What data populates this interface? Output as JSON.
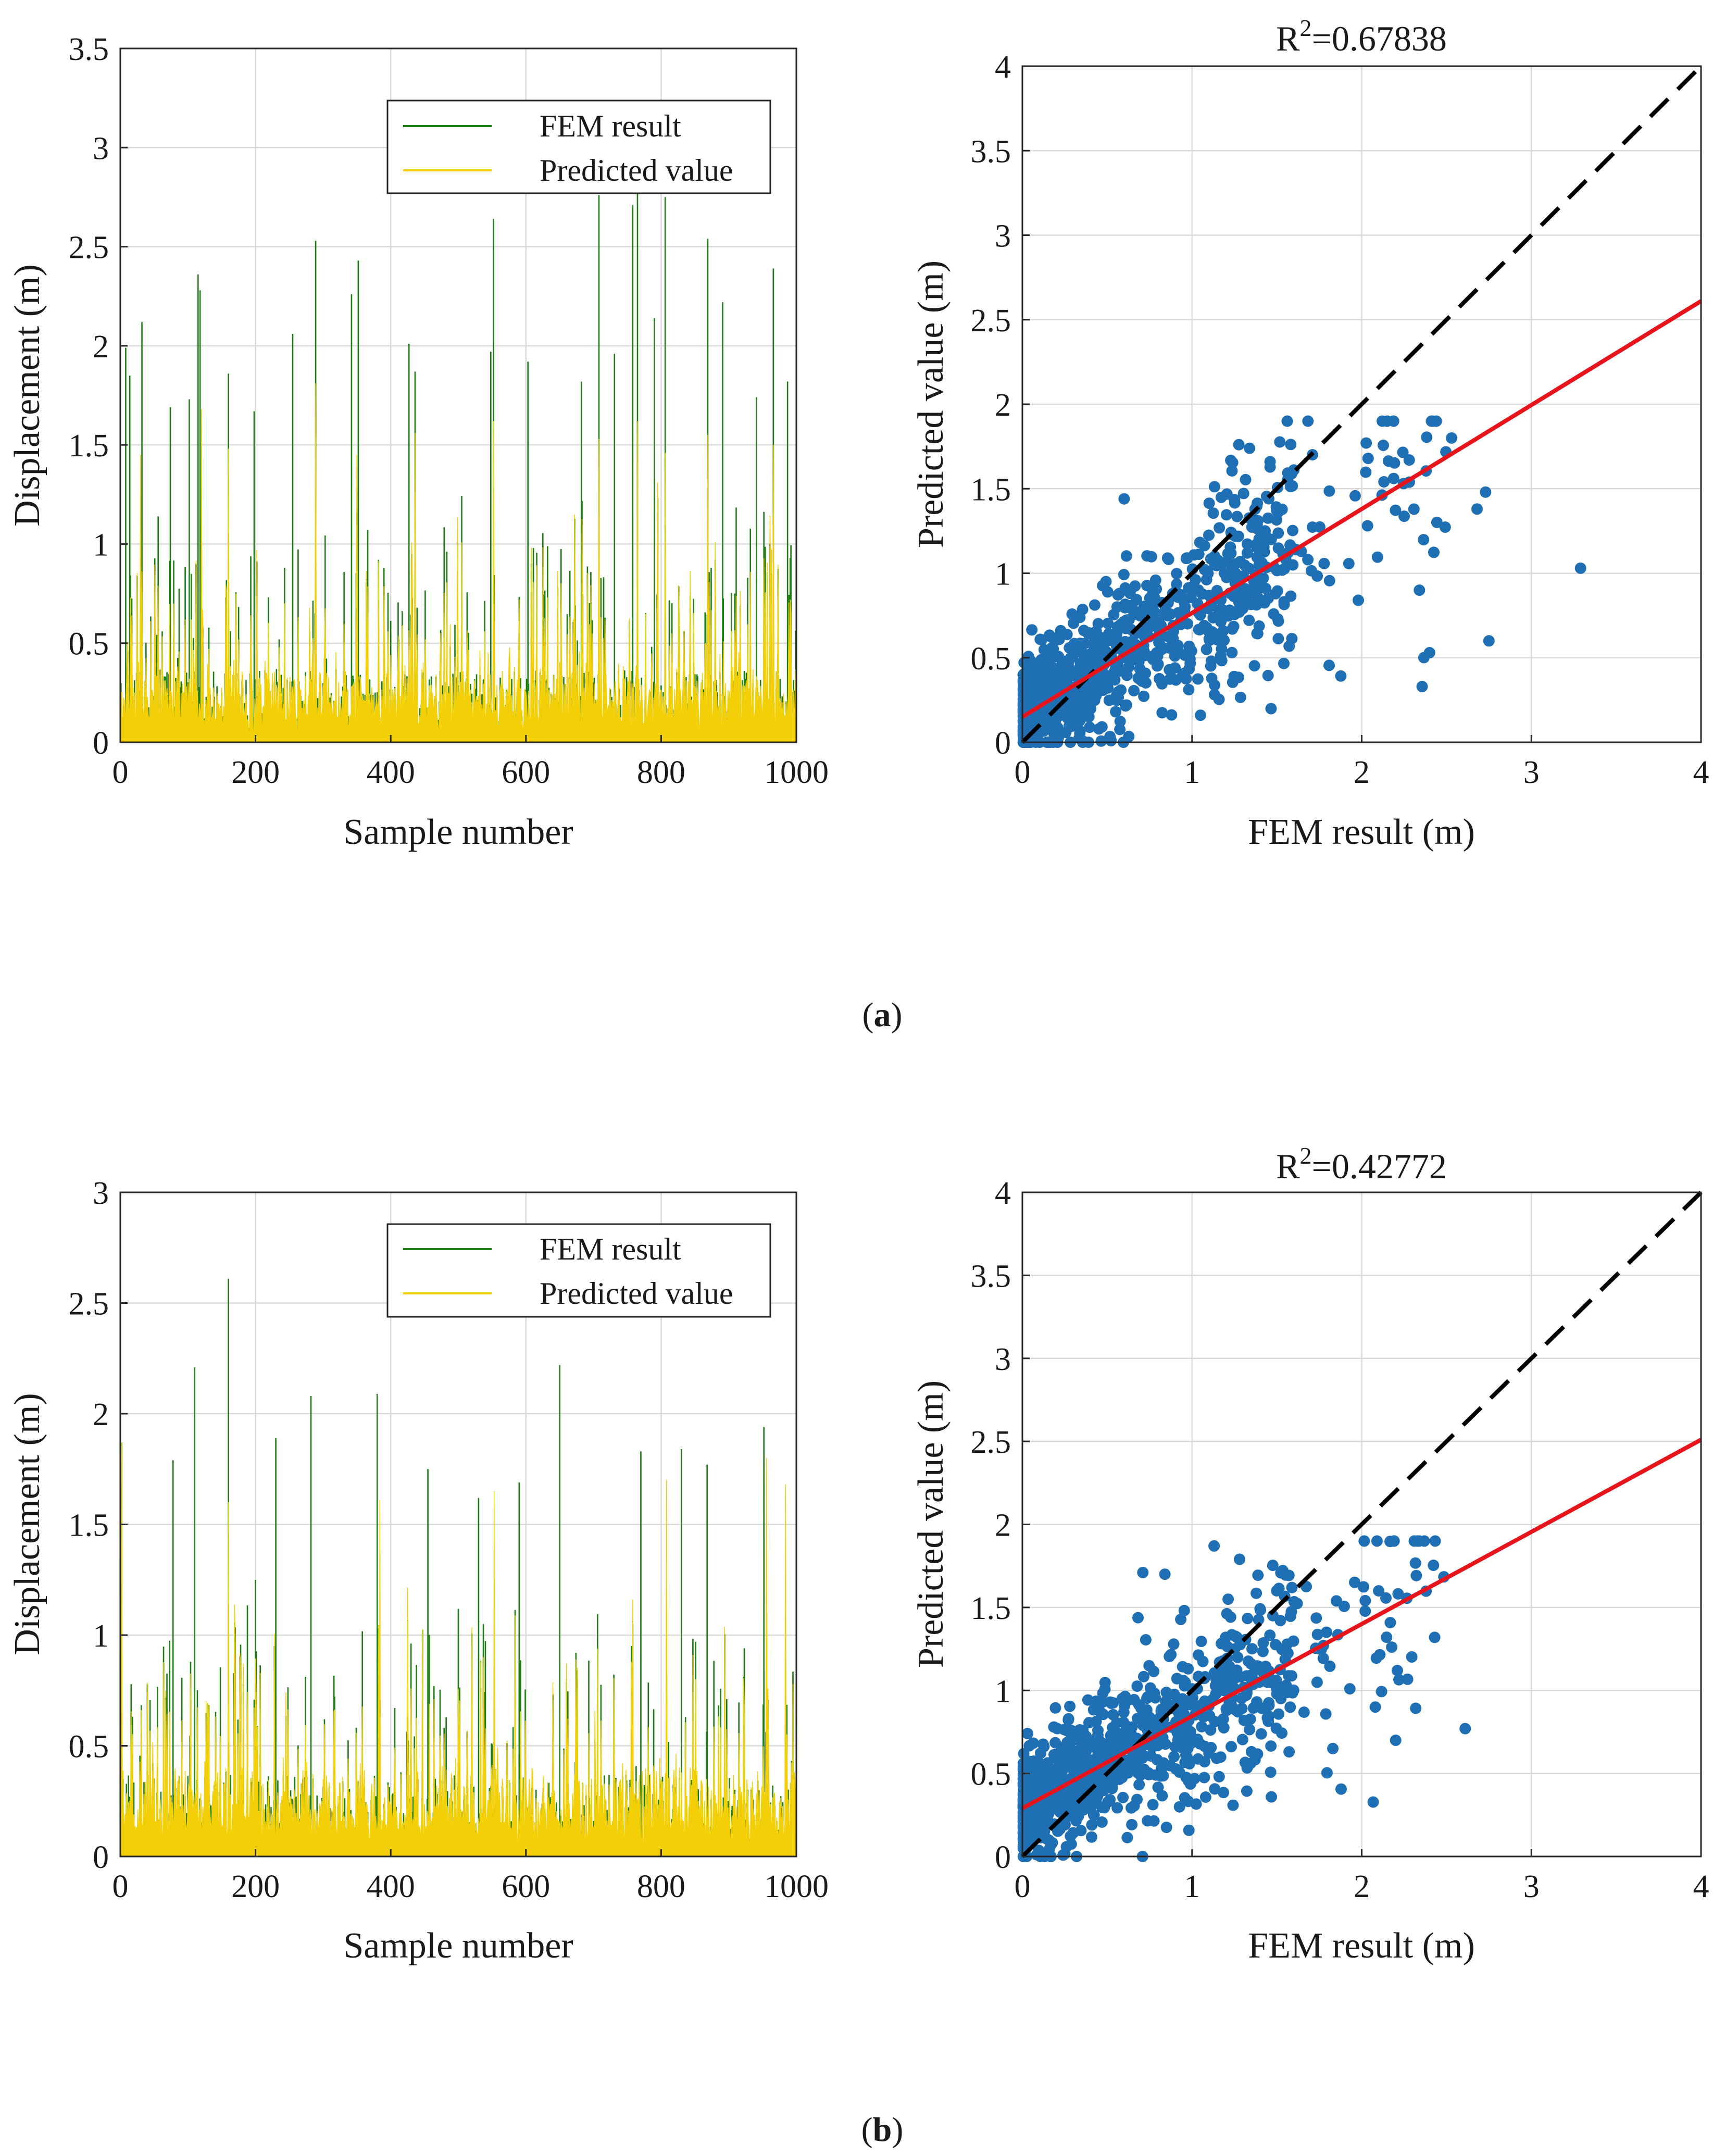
{
  "figure": {
    "caption_a_open": "(",
    "caption_a_letter": "a",
    "caption_a_close": ")",
    "caption_b_open": "(",
    "caption_b_letter": "b",
    "caption_b_close": ")"
  },
  "colors": {
    "fem": "#1b7d12",
    "predicted": "#f2cf06",
    "scatter": "#1f6fb5",
    "fit": "#e8141c",
    "identity": "#000000",
    "grid": "#d9d9d9"
  },
  "chart_data": [
    {
      "id": "a_series",
      "type": "bar",
      "xlabel": "Sample number",
      "ylabel": "Displacement (m)",
      "xlim": [
        0,
        1000
      ],
      "ylim": [
        0,
        3.5
      ],
      "xticks": [
        0,
        200,
        400,
        600,
        800,
        1000
      ],
      "yticks": [
        0,
        0.5,
        1,
        1.5,
        2,
        2.5,
        3,
        3.5
      ],
      "legend": [
        "FEM result",
        "Predicted value"
      ],
      "legend_position": "top-right",
      "n_samples": 1000,
      "fem_peaks": [
        {
          "x": 8,
          "v": 1.99
        },
        {
          "x": 14,
          "v": 1.85
        },
        {
          "x": 32,
          "v": 2.12
        },
        {
          "x": 74,
          "v": 1.69
        },
        {
          "x": 102,
          "v": 1.73
        },
        {
          "x": 115,
          "v": 2.36
        },
        {
          "x": 118,
          "v": 2.28
        },
        {
          "x": 160,
          "v": 1.86
        },
        {
          "x": 198,
          "v": 1.67
        },
        {
          "x": 255,
          "v": 2.06
        },
        {
          "x": 289,
          "v": 2.53
        },
        {
          "x": 342,
          "v": 2.26
        },
        {
          "x": 352,
          "v": 2.43
        },
        {
          "x": 427,
          "v": 2.01
        },
        {
          "x": 436,
          "v": 1.87
        },
        {
          "x": 548,
          "v": 1.97
        },
        {
          "x": 552,
          "v": 2.64
        },
        {
          "x": 603,
          "v": 1.92
        },
        {
          "x": 682,
          "v": 1.82
        },
        {
          "x": 708,
          "v": 2.76
        },
        {
          "x": 731,
          "v": 1.96
        },
        {
          "x": 758,
          "v": 2.71
        },
        {
          "x": 765,
          "v": 2.85
        },
        {
          "x": 790,
          "v": 2.14
        },
        {
          "x": 806,
          "v": 2.75
        },
        {
          "x": 869,
          "v": 2.54
        },
        {
          "x": 891,
          "v": 2.22
        },
        {
          "x": 941,
          "v": 1.74
        },
        {
          "x": 966,
          "v": 2.39
        },
        {
          "x": 987,
          "v": 1.82
        }
      ],
      "pred_peaks": [
        {
          "x": 30,
          "v": 1.45
        },
        {
          "x": 120,
          "v": 1.68
        },
        {
          "x": 160,
          "v": 1.48
        },
        {
          "x": 289,
          "v": 1.81
        },
        {
          "x": 350,
          "v": 1.45
        },
        {
          "x": 436,
          "v": 1.56
        },
        {
          "x": 552,
          "v": 1.62
        },
        {
          "x": 708,
          "v": 1.53
        },
        {
          "x": 765,
          "v": 1.62
        },
        {
          "x": 806,
          "v": 1.46
        },
        {
          "x": 869,
          "v": 1.55
        },
        {
          "x": 966,
          "v": 1.5
        }
      ]
    },
    {
      "id": "a_scatter",
      "type": "scatter",
      "title_prefix": "R",
      "title_exp": "2",
      "title_value": "=0.67838",
      "xlabel": "FEM result (m)",
      "ylabel": "Predicted value (m)",
      "xlim": [
        0,
        4
      ],
      "ylim": [
        0,
        4
      ],
      "xticks": [
        0,
        1,
        2,
        3,
        4
      ],
      "yticks": [
        0,
        0.5,
        1,
        1.5,
        2,
        2.5,
        3,
        3.5,
        4
      ],
      "fit_line": {
        "slope": 0.615,
        "intercept": 0.15
      },
      "identity_line": {
        "slope": 1,
        "intercept": 0
      },
      "n_points": 1000,
      "notable_points": [
        {
          "x": 3.29,
          "y": 1.03
        },
        {
          "x": 2.75,
          "y": 0.6
        },
        {
          "x": 2.73,
          "y": 1.48
        },
        {
          "x": 2.53,
          "y": 1.8
        },
        {
          "x": 2.4,
          "y": 0.53
        },
        {
          "x": 2.28,
          "y": 1.67
        },
        {
          "x": 1.46,
          "y": 1.66
        },
        {
          "x": 0.6,
          "y": 1.44
        },
        {
          "x": 1.05,
          "y": 0.16
        },
        {
          "x": 2.68,
          "y": 1.38
        },
        {
          "x": 2.34,
          "y": 0.9
        },
        {
          "x": 1.98,
          "y": 0.84
        }
      ]
    },
    {
      "id": "b_series",
      "type": "bar",
      "xlabel": "Sample number",
      "ylabel": "Displacement (m)",
      "xlim": [
        0,
        1000
      ],
      "ylim": [
        0,
        3
      ],
      "xticks": [
        0,
        200,
        400,
        600,
        800,
        1000
      ],
      "yticks": [
        0,
        0.5,
        1,
        1.5,
        2,
        2.5,
        3
      ],
      "legend": [
        "FEM result",
        "Predicted value"
      ],
      "legend_position": "top-right",
      "n_samples": 1000,
      "fem_peaks": [
        {
          "x": 2,
          "v": 1.87
        },
        {
          "x": 78,
          "v": 1.79
        },
        {
          "x": 110,
          "v": 2.21
        },
        {
          "x": 160,
          "v": 2.61
        },
        {
          "x": 230,
          "v": 1.89
        },
        {
          "x": 282,
          "v": 2.08
        },
        {
          "x": 380,
          "v": 2.09
        },
        {
          "x": 455,
          "v": 1.75
        },
        {
          "x": 530,
          "v": 1.62
        },
        {
          "x": 590,
          "v": 1.69
        },
        {
          "x": 650,
          "v": 2.22
        },
        {
          "x": 770,
          "v": 1.83
        },
        {
          "x": 830,
          "v": 1.84
        },
        {
          "x": 868,
          "v": 1.77
        },
        {
          "x": 952,
          "v": 1.94
        }
      ],
      "pred_peaks": [
        {
          "x": 2,
          "v": 1.87
        },
        {
          "x": 160,
          "v": 1.6
        },
        {
          "x": 384,
          "v": 1.61
        },
        {
          "x": 553,
          "v": 1.65
        },
        {
          "x": 808,
          "v": 1.7
        },
        {
          "x": 956,
          "v": 1.8
        },
        {
          "x": 984,
          "v": 1.68
        }
      ]
    },
    {
      "id": "b_scatter",
      "type": "scatter",
      "title_prefix": "R",
      "title_exp": "2",
      "title_value": "=0.42772",
      "xlabel": "FEM result (m)",
      "ylabel": "Predicted value (m)",
      "xlim": [
        0,
        4
      ],
      "ylim": [
        0,
        4
      ],
      "xticks": [
        0,
        1,
        2,
        3,
        4
      ],
      "yticks": [
        0,
        0.5,
        1,
        1.5,
        2,
        2.5,
        3,
        3.5,
        4
      ],
      "fit_line": {
        "slope": 0.555,
        "intercept": 0.29
      },
      "identity_line": {
        "slope": 1,
        "intercept": 0
      },
      "n_points": 1000,
      "notable_points": [
        {
          "x": 2.61,
          "y": 0.77
        },
        {
          "x": 2.21,
          "y": 1.12
        },
        {
          "x": 2.2,
          "y": 0.7
        },
        {
          "x": 2.1,
          "y": 1.6
        },
        {
          "x": 1.13,
          "y": 1.87
        },
        {
          "x": 0.71,
          "y": 1.71
        },
        {
          "x": 0.84,
          "y": 1.7
        },
        {
          "x": 1.28,
          "y": 1.79
        },
        {
          "x": 1.83,
          "y": 0.65
        },
        {
          "x": 2.08,
          "y": 0.9
        },
        {
          "x": 1.93,
          "y": 1.01
        },
        {
          "x": 0.32,
          "y": 0.0
        }
      ]
    }
  ]
}
